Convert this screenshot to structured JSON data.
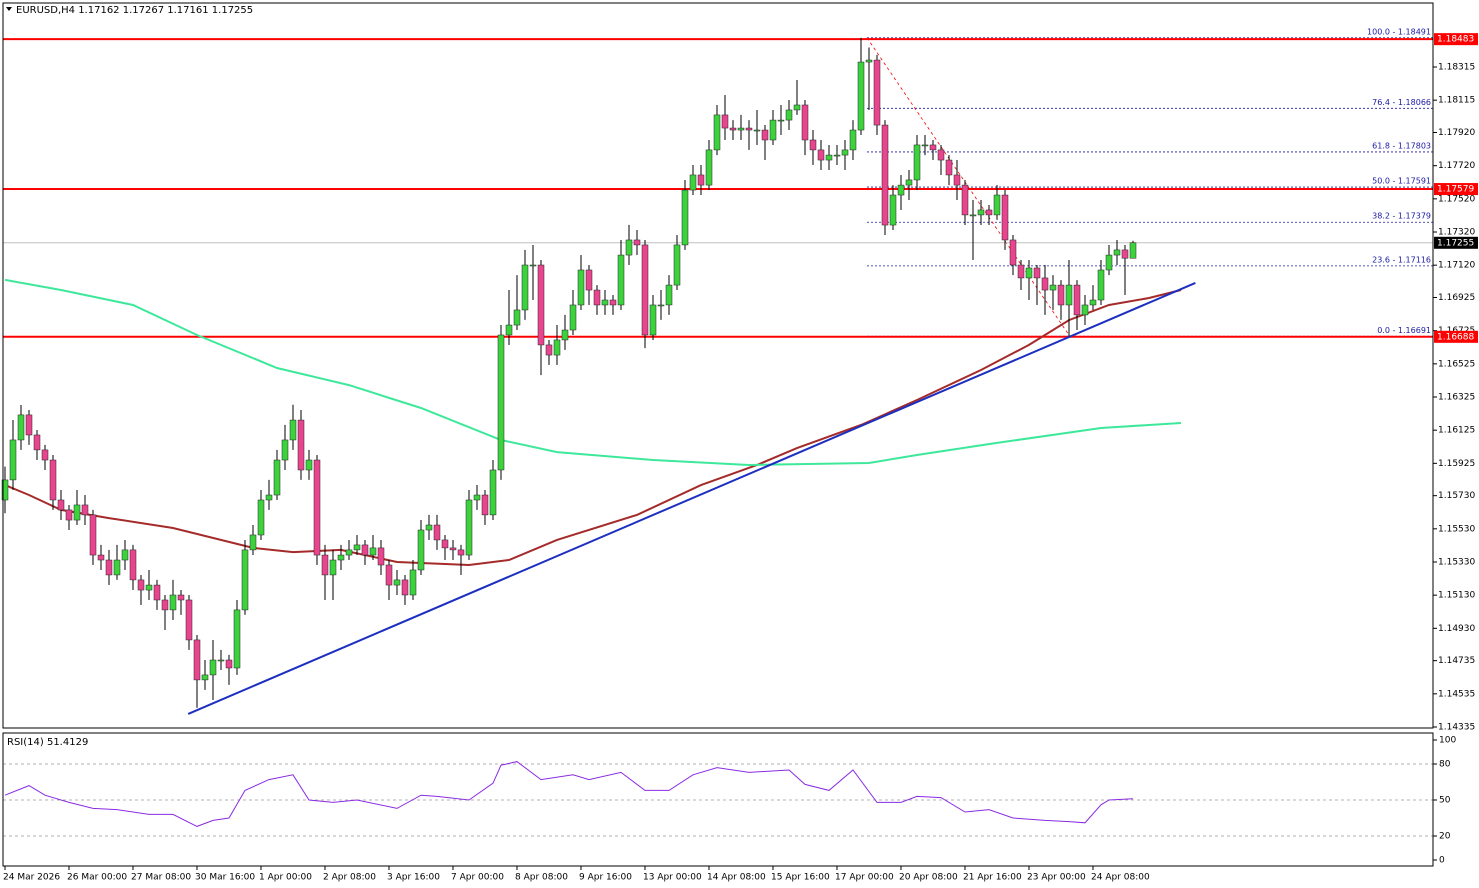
{
  "chart_data": [
    {
      "type": "candlestick",
      "title": "EURUSD,H4  1.17162 1.17267 1.17161 1.17255",
      "up_color": "#3ed13e",
      "down_color": "#e8458f",
      "xlim": [
        -0.25,
        178.5
      ],
      "ylim": [
        1.14335,
        1.18695
      ],
      "yticks": [
        {
          "value": 1.18315,
          "label": "1.18315"
        },
        {
          "value": 1.18115,
          "label": "1.18115"
        },
        {
          "value": 1.1792,
          "label": "1.17920"
        },
        {
          "value": 1.1772,
          "label": "1.17720"
        },
        {
          "value": 1.1752,
          "label": "1.17520"
        },
        {
          "value": 1.1732,
          "label": "1.17320"
        },
        {
          "value": 1.1712,
          "label": "1.17120"
        },
        {
          "value": 1.16925,
          "label": "1.16925"
        },
        {
          "value": 1.16725,
          "label": "1.16725"
        },
        {
          "value": 1.16525,
          "label": "1.16525"
        },
        {
          "value": 1.16325,
          "label": "1.16325"
        },
        {
          "value": 1.16125,
          "label": "1.16125"
        },
        {
          "value": 1.15925,
          "label": "1.15925"
        },
        {
          "value": 1.1573,
          "label": "1.15730"
        },
        {
          "value": 1.1553,
          "label": "1.15530"
        },
        {
          "value": 1.1533,
          "label": "1.15330"
        },
        {
          "value": 1.1513,
          "label": "1.15130"
        },
        {
          "value": 1.1493,
          "label": "1.14930"
        },
        {
          "value": 1.14735,
          "label": "1.14735"
        },
        {
          "value": 1.14535,
          "label": "1.14535"
        },
        {
          "value": 1.14335,
          "label": "1.14335"
        }
      ],
      "open": [
        1.15704,
        1.15825,
        1.16066,
        1.16217,
        1.16096,
        1.16006,
        1.15945,
        1.15704,
        1.15644,
        1.15583,
        1.15674,
        1.15614,
        1.15372,
        1.15342,
        1.15252,
        1.15342,
        1.15403,
        1.15222,
        1.15161,
        1.15191,
        1.15101,
        1.15041,
        1.15131,
        1.15101,
        1.1486,
        1.14619,
        1.14649,
        1.14739,
        1.14739,
        1.14691,
        1.15041,
        1.15403,
        1.15493,
        1.15704,
        1.15734,
        1.15945,
        1.16066,
        1.16186,
        1.15885,
        1.15945,
        1.15372,
        1.15252,
        1.15342,
        1.15372,
        1.15403,
        1.15433,
        1.15372,
        1.15415,
        1.15312,
        1.15191,
        1.15222,
        1.15131,
        1.15282,
        1.15523,
        1.15553,
        1.15463,
        1.15415,
        1.15403,
        1.15372,
        1.15704,
        1.15734,
        1.15614,
        1.15885,
        1.16699,
        1.16759,
        1.1685,
        1.17121,
        1.17121,
        1.16639,
        1.16578,
        1.16669,
        1.16729,
        1.1688,
        1.17091,
        1.1697,
        1.1688,
        1.1691,
        1.1688,
        1.17181,
        1.17272,
        1.17242,
        1.16699,
        1.1688,
        1.1688,
        1.17,
        1.17242,
        1.17573,
        1.17664,
        1.17603,
        1.17815,
        1.18026,
        1.17947,
        1.17935,
        1.17947,
        1.17935,
        1.17935,
        1.17875,
        1.17995,
        1.17995,
        1.18056,
        1.18086,
        1.17875,
        1.17815,
        1.17754,
        1.17784,
        1.17784,
        1.17815,
        1.17935,
        1.18345,
        1.18357,
        1.17965,
        1.17362,
        1.17543,
        1.17603,
        1.17634,
        1.17845,
        1.17845,
        1.17815,
        1.17754,
        1.17664,
        1.17603,
        1.17423,
        1.17423,
        1.17453,
        1.17423,
        1.17543,
        1.17272,
        1.17121,
        1.17043,
        1.17103,
        1.17043,
        1.1697,
        1.17,
        1.1688,
        1.17,
        1.1682,
        1.1688,
        1.1691,
        1.17091,
        1.17181,
        1.17212,
        1.17162
      ],
      "high": [
        1.15905,
        1.16186,
        1.16277,
        1.16247,
        1.16126,
        1.16036,
        1.15975,
        1.15764,
        1.15674,
        1.15764,
        1.15734,
        1.15644,
        1.15433,
        1.15403,
        1.15433,
        1.15463,
        1.15433,
        1.15252,
        1.15282,
        1.15222,
        1.15131,
        1.15222,
        1.15161,
        1.15131,
        1.1489,
        1.14739,
        1.1486,
        1.148,
        1.1477,
        1.15101,
        1.15463,
        1.15553,
        1.15764,
        1.15825,
        1.16006,
        1.16157,
        1.16278,
        1.16247,
        1.16006,
        1.15975,
        1.15433,
        1.15403,
        1.15433,
        1.15463,
        1.15493,
        1.15463,
        1.15493,
        1.15463,
        1.15342,
        1.15282,
        1.15252,
        1.15342,
        1.15583,
        1.15614,
        1.15614,
        1.15493,
        1.15463,
        1.15433,
        1.15764,
        1.15794,
        1.15764,
        1.15945,
        1.16759,
        1.1697,
        1.1706,
        1.17212,
        1.17242,
        1.17151,
        1.16669,
        1.16759,
        1.1682,
        1.1697,
        1.17181,
        1.17121,
        1.17,
        1.1697,
        1.1694,
        1.17272,
        1.17363,
        1.17332,
        1.17272,
        1.1694,
        1.1697,
        1.1706,
        1.17302,
        1.17634,
        1.17724,
        1.17724,
        1.17875,
        1.18086,
        1.18146,
        1.17995,
        1.18026,
        1.17995,
        1.18056,
        1.17965,
        1.18056,
        1.18086,
        1.18116,
        1.18237,
        1.18116,
        1.17935,
        1.17875,
        1.17845,
        1.17845,
        1.17875,
        1.17995,
        1.18491,
        1.18433,
        1.18388,
        1.17995,
        1.17603,
        1.17664,
        1.17694,
        1.17905,
        1.17905,
        1.17875,
        1.17845,
        1.17784,
        1.17754,
        1.17634,
        1.17513,
        1.17513,
        1.17483,
        1.17603,
        1.17573,
        1.17302,
        1.17151,
        1.17151,
        1.17121,
        1.17121,
        1.1706,
        1.1703,
        1.17151,
        1.1703,
        1.1694,
        1.17,
        1.17151,
        1.17242,
        1.17272,
        1.17242,
        1.17267
      ],
      "low": [
        1.15624,
        1.15765,
        1.16006,
        1.16036,
        1.15945,
        1.15885,
        1.15644,
        1.15583,
        1.15523,
        1.15553,
        1.15553,
        1.15312,
        1.15282,
        1.15191,
        1.15222,
        1.15282,
        1.15161,
        1.15071,
        1.15101,
        1.15041,
        1.1492,
        1.1498,
        1.15011,
        1.148,
        1.1445,
        1.14559,
        1.14498,
        1.14679,
        1.14589,
        1.14649,
        1.15011,
        1.15372,
        1.15463,
        1.15644,
        1.15704,
        1.15885,
        1.16006,
        1.15825,
        1.15825,
        1.15312,
        1.15101,
        1.15101,
        1.15282,
        1.15342,
        1.15372,
        1.15312,
        1.15342,
        1.15252,
        1.15101,
        1.15131,
        1.15071,
        1.15101,
        1.15252,
        1.15463,
        1.15403,
        1.15342,
        1.15342,
        1.15252,
        1.15342,
        1.15644,
        1.15553,
        1.15583,
        1.15825,
        1.16639,
        1.16729,
        1.1679,
        1.1691,
        1.16457,
        1.16518,
        1.16518,
        1.16609,
        1.16699,
        1.1685,
        1.1688,
        1.1682,
        1.1682,
        1.1682,
        1.1685,
        1.17121,
        1.17181,
        1.1662,
        1.16669,
        1.1679,
        1.1682,
        1.1697,
        1.17212,
        1.17543,
        1.17543,
        1.17573,
        1.17784,
        1.17875,
        1.17875,
        1.17875,
        1.17815,
        1.17845,
        1.17754,
        1.17845,
        1.17905,
        1.17935,
        1.18026,
        1.17784,
        1.17724,
        1.17694,
        1.17694,
        1.17724,
        1.17694,
        1.17754,
        1.17905,
        1.18056,
        1.17905,
        1.17302,
        1.17332,
        1.17453,
        1.17513,
        1.17573,
        1.17784,
        1.17754,
        1.17664,
        1.17603,
        1.17513,
        1.17362,
        1.17151,
        1.17362,
        1.17362,
        1.17393,
        1.17212,
        1.1706,
        1.1697,
        1.1691,
        1.1688,
        1.1682,
        1.1685,
        1.1679,
        1.16691,
        1.16729,
        1.16759,
        1.1685,
        1.1688,
        1.1706,
        1.17121,
        1.1694,
        1.17161
      ],
      "close": [
        1.15825,
        1.16066,
        1.16217,
        1.16096,
        1.16006,
        1.15945,
        1.15704,
        1.15644,
        1.15583,
        1.15674,
        1.15614,
        1.15372,
        1.15342,
        1.15252,
        1.15342,
        1.15403,
        1.15222,
        1.15161,
        1.15191,
        1.15101,
        1.15041,
        1.15131,
        1.15101,
        1.1486,
        1.14619,
        1.14649,
        1.14739,
        1.14739,
        1.14691,
        1.15041,
        1.15403,
        1.15493,
        1.15704,
        1.15734,
        1.15945,
        1.16066,
        1.16186,
        1.15885,
        1.15945,
        1.15372,
        1.15252,
        1.15342,
        1.15372,
        1.15403,
        1.15433,
        1.15372,
        1.15415,
        1.15312,
        1.15191,
        1.15222,
        1.15131,
        1.15282,
        1.15523,
        1.15553,
        1.15463,
        1.15415,
        1.15403,
        1.15372,
        1.15704,
        1.15734,
        1.15614,
        1.15885,
        1.16699,
        1.16759,
        1.1685,
        1.17121,
        1.17121,
        1.16639,
        1.16578,
        1.16669,
        1.16729,
        1.1688,
        1.17091,
        1.1697,
        1.1688,
        1.1691,
        1.1688,
        1.17181,
        1.17272,
        1.17242,
        1.16699,
        1.1688,
        1.1688,
        1.17,
        1.17242,
        1.17573,
        1.17664,
        1.17603,
        1.17815,
        1.18026,
        1.17947,
        1.17935,
        1.17947,
        1.17935,
        1.17935,
        1.17875,
        1.17995,
        1.17995,
        1.18056,
        1.18086,
        1.17875,
        1.17815,
        1.17754,
        1.17784,
        1.17784,
        1.17815,
        1.17935,
        1.18345,
        1.18357,
        1.17965,
        1.17362,
        1.17543,
        1.17603,
        1.17634,
        1.17845,
        1.17845,
        1.17815,
        1.17754,
        1.17664,
        1.17603,
        1.17423,
        1.17423,
        1.17453,
        1.17423,
        1.17543,
        1.17272,
        1.17121,
        1.17043,
        1.17103,
        1.17043,
        1.1697,
        1.17,
        1.1688,
        1.17,
        1.1682,
        1.1688,
        1.1691,
        1.17091,
        1.17181,
        1.17212,
        1.17162,
        1.17255
      ],
      "lines": [
        {
          "color": "#a52a2a",
          "x": [
            0,
            3,
            7,
            13,
            21,
            31,
            36,
            42,
            49,
            58,
            63,
            69,
            79,
            87,
            94,
            99,
            107,
            114,
            122,
            128,
            133,
            138,
            143,
            147
          ],
          "values": [
            1.15794,
            1.15734,
            1.15644,
            1.15595,
            1.15535,
            1.15415,
            1.1539,
            1.15403,
            1.1533,
            1.15312,
            1.15342,
            1.15463,
            1.15614,
            1.15794,
            1.15915,
            1.16017,
            1.16156,
            1.16307,
            1.16488,
            1.16639,
            1.16789,
            1.1688,
            1.16922,
            1.1697
          ]
        },
        {
          "color": "#3ee89a",
          "x": [
            0,
            7,
            16,
            24,
            34,
            43,
            52,
            62,
            69,
            81,
            93,
            108,
            114,
            124,
            137,
            147
          ],
          "values": [
            1.17031,
            1.1697,
            1.1688,
            1.16699,
            1.165,
            1.16397,
            1.16259,
            1.16066,
            1.15993,
            1.15945,
            1.15915,
            1.15927,
            1.15975,
            1.16048,
            1.16138,
            1.16168
          ]
        },
        {
          "color": "#1c2fc0",
          "x": [
            22.9,
            148.8
          ],
          "values": [
            1.14414,
            1.17013
          ]
        }
      ],
      "hlines": {
        "color": "#ff0000",
        "values": [
          1.18483,
          1.17579,
          1.16688
        ]
      },
      "fib": {
        "color": "#1a1aa6",
        "x": [
          107.75,
          178.5
        ],
        "levels": [
          {
            "value": 1.18491,
            "label": "100.0 - 1.18491"
          },
          {
            "value": 1.18066,
            "label": "76.4 - 1.18066"
          },
          {
            "value": 1.17803,
            "label": "61.8 - 1.17803"
          },
          {
            "value": 1.17591,
            "label": "50.0 - 1.17591"
          },
          {
            "value": 1.17379,
            "label": "38.2 - 1.17379"
          },
          {
            "value": 1.17116,
            "label": "23.6 - 1.17116"
          },
          {
            "value": 1.16691,
            "label": "0.0 - 1.16691"
          }
        ],
        "diagonal": {
          "color": "#ff0000",
          "x": [
            107.75,
            133.1
          ],
          "values": [
            1.18491,
            1.16691
          ]
        }
      }
    },
    {
      "type": "line",
      "title": "RSI(14) 51.4129",
      "color": "#8a2be2",
      "xlim": [
        -0.25,
        178.5
      ],
      "ylim": [
        0,
        100
      ],
      "yticks": [
        100,
        80,
        50,
        20,
        0
      ],
      "grid": true,
      "xticks": [
        {
          "value": 0,
          "label": "24 Mar 2026"
        },
        {
          "value": 8,
          "label": "26 Mar 00:00"
        },
        {
          "value": 16,
          "label": "27 Mar 08:00"
        },
        {
          "value": 24,
          "label": "30 Mar 16:00"
        },
        {
          "value": 32,
          "label": "1 Apr 00:00"
        },
        {
          "value": 40,
          "label": "2 Apr 08:00"
        },
        {
          "value": 48,
          "label": "3 Apr 16:00"
        },
        {
          "value": 56,
          "label": "7 Apr 00:00"
        },
        {
          "value": 64,
          "label": "8 Apr 08:00"
        },
        {
          "value": 72,
          "label": "9 Apr 16:00"
        },
        {
          "value": 80,
          "label": "13 Apr 00:00"
        },
        {
          "value": 88,
          "label": "14 Apr 08:00"
        },
        {
          "value": 96,
          "label": "15 Apr 16:00"
        },
        {
          "value": 104,
          "label": "17 Apr 00:00"
        },
        {
          "value": 112,
          "label": "20 Apr 08:00"
        },
        {
          "value": 120,
          "label": "21 Apr 16:00"
        },
        {
          "value": 128,
          "label": "23 Apr 00:00"
        },
        {
          "value": 136,
          "label": "24 Apr 08:00"
        }
      ],
      "x": [
        0,
        3,
        5,
        8,
        11,
        14,
        18,
        21,
        24,
        26,
        28,
        30,
        33,
        36,
        38,
        41,
        44,
        49,
        52,
        54,
        58,
        61,
        62,
        64,
        67,
        71,
        73,
        77,
        80,
        83,
        86,
        89,
        93,
        98,
        100,
        103,
        106,
        109,
        112,
        114,
        117,
        120,
        123,
        126,
        130,
        133,
        135,
        137,
        138,
        141
      ],
      "values": [
        54,
        62,
        54,
        48,
        43,
        42,
        38,
        38,
        28,
        33,
        35,
        58,
        67,
        71,
        50,
        48,
        50,
        43,
        54,
        53,
        50,
        64,
        79,
        82,
        67,
        71,
        67,
        73,
        58,
        58,
        71,
        77,
        73,
        75,
        63,
        58,
        75,
        48,
        48,
        53,
        52,
        40,
        42,
        35,
        33,
        32,
        31,
        46,
        50,
        51
      ]
    }
  ]
}
